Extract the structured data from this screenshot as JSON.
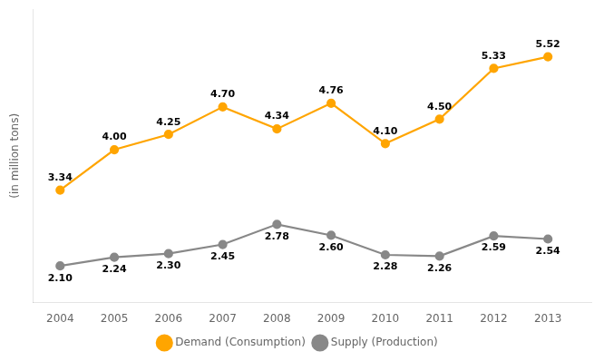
{
  "chart_data": {
    "type": "line",
    "ylabel": "(in million tons)",
    "x": [
      2004,
      2005,
      2006,
      2007,
      2008,
      2009,
      2010,
      2011,
      2012,
      2013
    ],
    "xlim": [
      2003.5,
      2013.8
    ],
    "xticks": [
      2004,
      2005,
      2006,
      2007,
      2008,
      2009,
      2010,
      2011,
      2012,
      2013
    ],
    "ylim": [
      1.5,
      6.3
    ],
    "series": [
      {
        "name": "Demand (Consumption)",
        "color": "#FFA500",
        "marker": "circle",
        "values": [
          3.34,
          4.0,
          4.25,
          4.7,
          4.34,
          4.76,
          4.1,
          4.5,
          5.33,
          5.52
        ],
        "value_labels": [
          "3.34",
          "4.00",
          "4.25",
          "4.70",
          "4.34",
          "4.76",
          "4.10",
          "4.50",
          "5.33",
          "5.52"
        ]
      },
      {
        "name": "Supply (Production)",
        "color": "#888888",
        "marker": "circle",
        "values": [
          2.1,
          2.24,
          2.3,
          2.45,
          2.78,
          2.6,
          2.28,
          2.26,
          2.59,
          2.54
        ],
        "value_labels": [
          "2.10",
          "2.24",
          "2.30",
          "2.45",
          "2.78",
          "2.60",
          "2.28",
          "2.26",
          "2.59",
          "2.54"
        ]
      }
    ],
    "data_labels": true,
    "tick_labels": "x",
    "grid": false,
    "legend": "bottom"
  }
}
